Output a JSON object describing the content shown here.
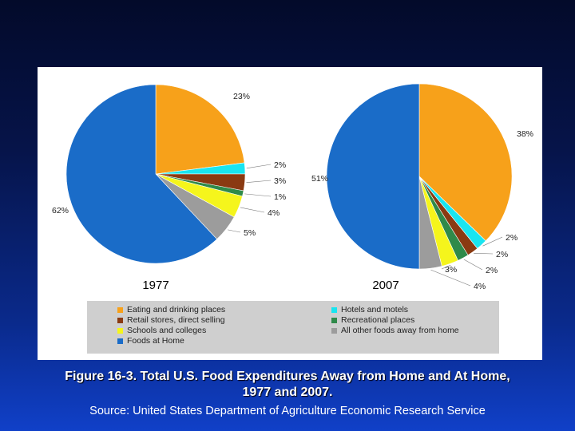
{
  "chart_data": {
    "type": "pie",
    "categories": [
      "Eating and drinking places",
      "Hotels and motels",
      "Retail stores, direct selling",
      "Recreational places",
      "Schools and colleges",
      "All other foods away from home",
      "Foods at Home"
    ],
    "colors": [
      "#f7a11a",
      "#19e5f0",
      "#8a3a12",
      "#2f8a4a",
      "#f5f51c",
      "#9c9c9c",
      "#1a6cc8"
    ],
    "series": [
      {
        "name": "1977",
        "values": [
          23,
          2,
          3,
          1,
          4,
          5,
          62
        ],
        "labels": [
          "23%",
          "2%",
          "3%",
          "1%",
          "4%",
          "5%",
          "62%"
        ]
      },
      {
        "name": "2007",
        "values": [
          38,
          2,
          2,
          2,
          3,
          4,
          51
        ],
        "labels": [
          "38%",
          "2%",
          "2%",
          "2%",
          "3%",
          "4%",
          "51%"
        ]
      }
    ],
    "legend": [
      {
        "label": "Eating and drinking places",
        "color": "#f7a11a"
      },
      {
        "label": "Hotels and motels",
        "color": "#19e5f0"
      },
      {
        "label": "Retail stores, direct selling",
        "color": "#8a3a12"
      },
      {
        "label": "Recreational places",
        "color": "#2f8a4a"
      },
      {
        "label": "Schools and colleges",
        "color": "#f5f51c"
      },
      {
        "label": "All other foods away from home",
        "color": "#9c9c9c"
      },
      {
        "label": "Foods at Home",
        "color": "#1a6cc8"
      }
    ],
    "legend_position": "bottom"
  },
  "caption": {
    "line1": "Figure 16-3. Total U.S. Food Expenditures Away from Home and At Home,",
    "line2": "1977 and 2007.",
    "source": "Source: United States Department of Agriculture Economic Research Service"
  }
}
